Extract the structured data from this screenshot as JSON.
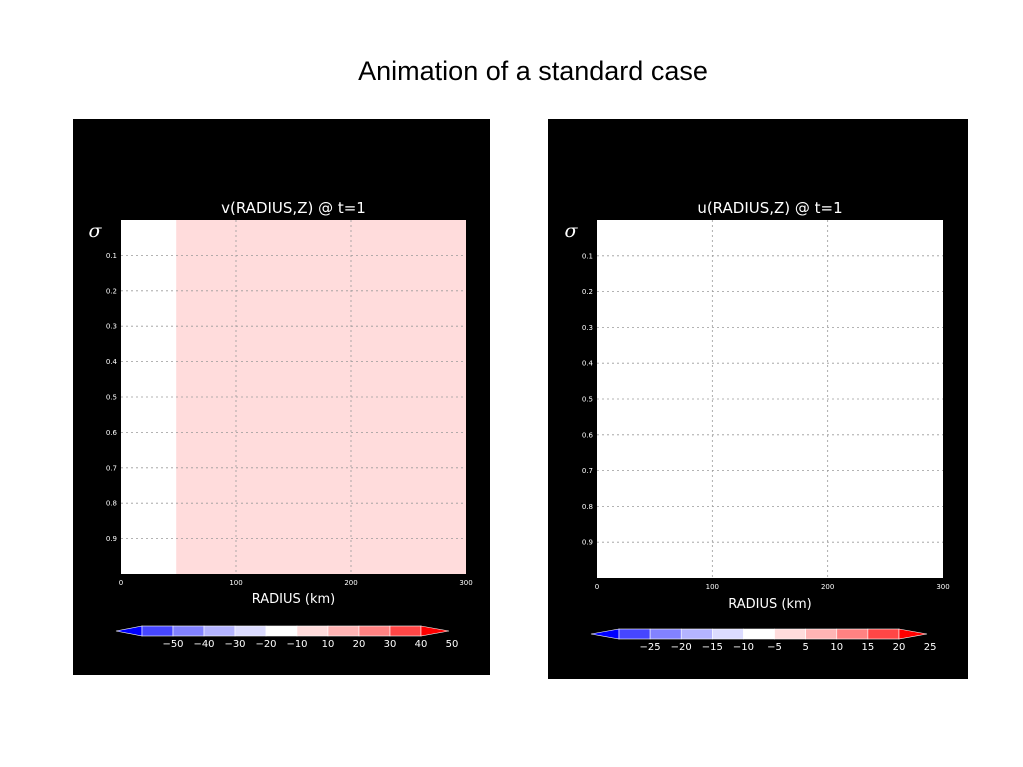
{
  "slide": {
    "title": "Animation of a standard case"
  },
  "chart_data": [
    {
      "type": "heatmap",
      "title": "v(RADIUS,Z)  @  t=1",
      "xlabel": "RADIUS (km)",
      "ylabel": "σ",
      "xlim": [
        0,
        300
      ],
      "ylim": [
        1.0,
        0.0
      ],
      "x_ticks": [
        "0",
        "100",
        "200",
        "300"
      ],
      "y_ticks": [
        "0.1",
        "0.2",
        "0.3",
        "0.4",
        "0.5",
        "0.6",
        "0.7",
        "0.8",
        "0.9"
      ],
      "grid": true,
      "fill_regions": [
        {
          "x_start": 0,
          "x_end": 48,
          "level": "-10 to 10",
          "color": "#ffffff"
        },
        {
          "x_start": 48,
          "x_end": 300,
          "level": "10 to 20",
          "color": "#ffdcdc"
        }
      ],
      "colorbar": {
        "labels": [
          "−50",
          "−40",
          "−30",
          "−20",
          "−10",
          "10",
          "20",
          "30",
          "40",
          "50"
        ],
        "colors": [
          "#0000ff",
          "#4646ff",
          "#8282ff",
          "#b4b4ff",
          "#dcdcff",
          "#ffffff",
          "#ffdcdc",
          "#ffb4b4",
          "#ff8282",
          "#ff4646",
          "#ff0000"
        ]
      }
    },
    {
      "type": "heatmap",
      "title": "u(RADIUS,Z)  @  t=1",
      "xlabel": "RADIUS (km)",
      "ylabel": "σ",
      "xlim": [
        0,
        300
      ],
      "ylim": [
        1.0,
        0.0
      ],
      "x_ticks": [
        "0",
        "100",
        "200",
        "300"
      ],
      "y_ticks": [
        "0.1",
        "0.2",
        "0.3",
        "0.4",
        "0.5",
        "0.6",
        "0.7",
        "0.8",
        "0.9"
      ],
      "grid": true,
      "fill_regions": [
        {
          "x_start": 0,
          "x_end": 300,
          "level": "-5 to 5",
          "color": "#ffffff"
        }
      ],
      "colorbar": {
        "labels": [
          "−25",
          "−20",
          "−15",
          "−10",
          "−5",
          "5",
          "10",
          "15",
          "20",
          "25"
        ],
        "colors": [
          "#0000ff",
          "#4646ff",
          "#8282ff",
          "#b4b4ff",
          "#dcdcff",
          "#ffffff",
          "#ffdcdc",
          "#ffb4b4",
          "#ff8282",
          "#ff4646",
          "#ff0000"
        ]
      }
    }
  ]
}
